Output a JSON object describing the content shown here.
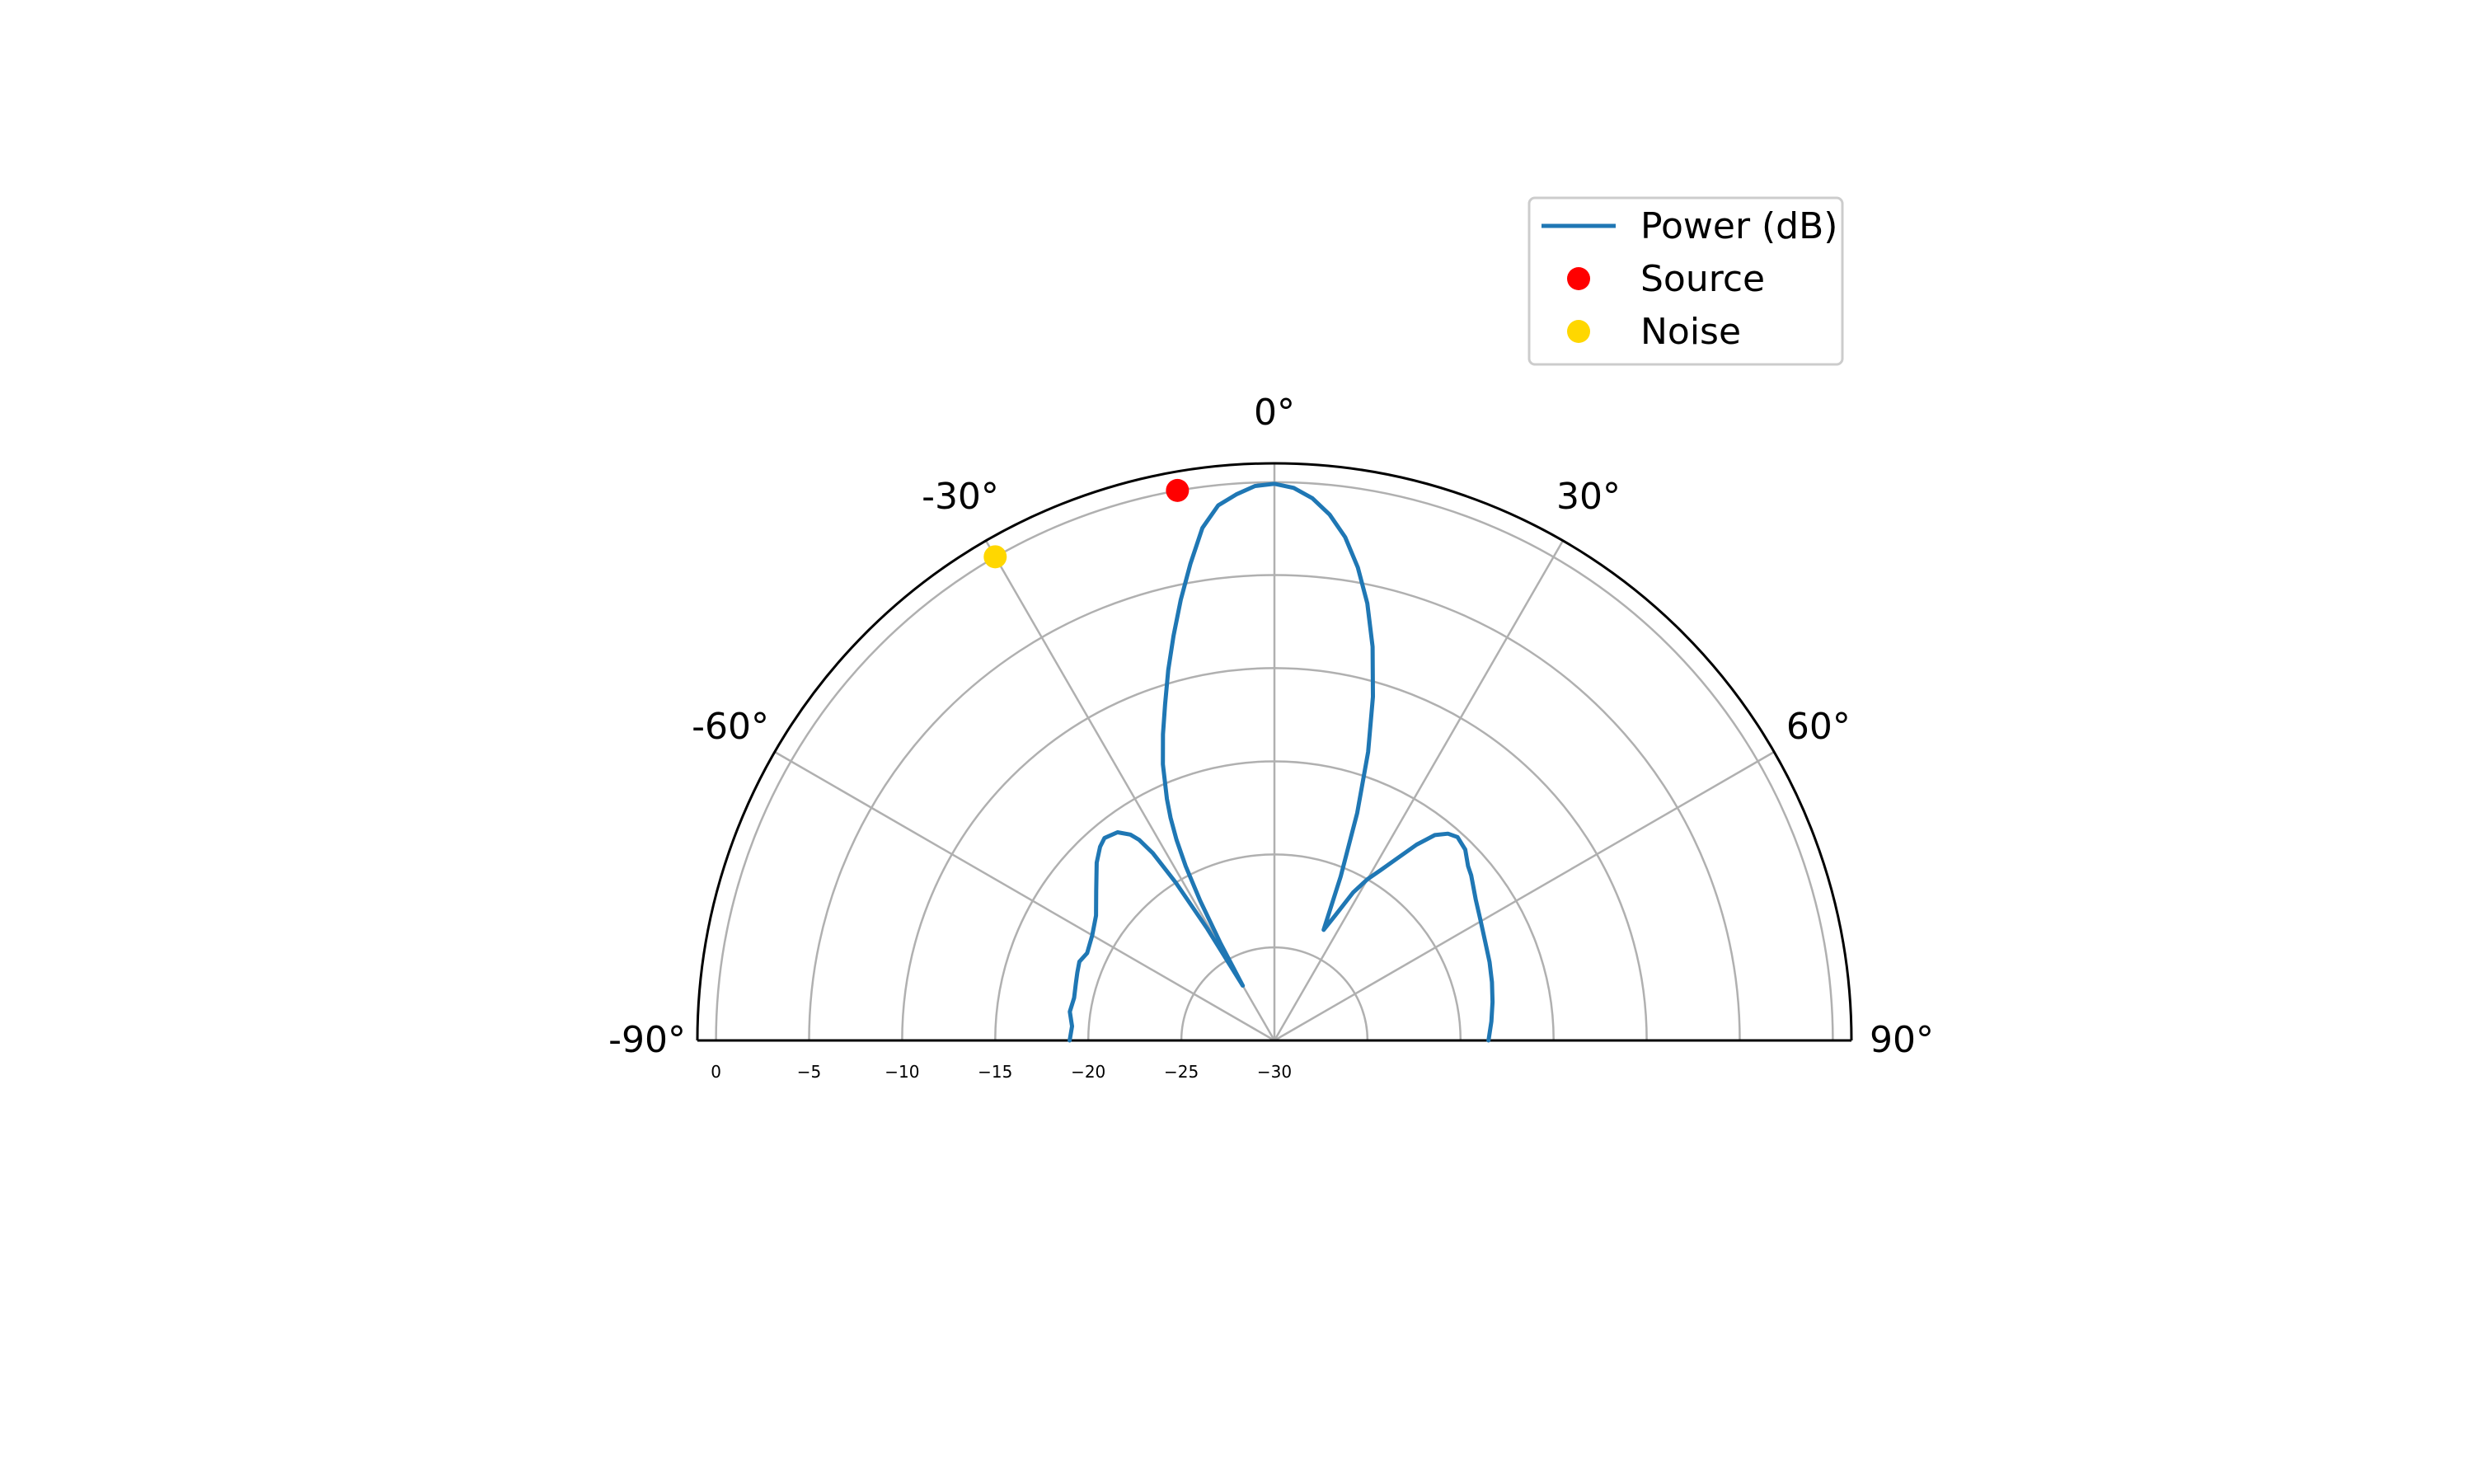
{
  "colors": {
    "power": "#1f77b4",
    "source": "#ff0000",
    "noise": "#ffd700",
    "grid": "#b0b0b0",
    "frame": "#000000",
    "legend_border": "#cccccc"
  },
  "chart_data": {
    "type": "polar",
    "subtype": "half-polar line with markers",
    "theta_unit": "degrees",
    "theta_range": [
      -90,
      90
    ],
    "theta_zero": "top",
    "theta_ticks": [
      -90,
      -60,
      -30,
      0,
      30,
      60,
      90
    ],
    "theta_tick_labels": [
      "-90°",
      "-60°",
      "-30°",
      "0°",
      "30°",
      "60°",
      "90°"
    ],
    "r_range": [
      -30,
      1
    ],
    "r_ticks": [
      0,
      -5,
      -10,
      -15,
      -20,
      -25,
      -30
    ],
    "r_tick_labels": [
      "0",
      "−5",
      "−10",
      "−15",
      "−20",
      "−25",
      "−30"
    ],
    "grid": true,
    "legend": {
      "position": "top-right",
      "entries": [
        {
          "label": "Power (dB)",
          "kind": "line",
          "color_key": "power"
        },
        {
          "label": "Source",
          "kind": "marker",
          "color_key": "source"
        },
        {
          "label": "Noise",
          "kind": "marker",
          "color_key": "noise"
        }
      ]
    },
    "series": [
      {
        "name": "Power (dB)",
        "kind": "line",
        "color_key": "power",
        "theta": [
          -90,
          -86,
          -82,
          -78,
          -74,
          -71,
          -68,
          -65,
          -60,
          -55,
          -50,
          -45,
          -42,
          -40,
          -37,
          -35,
          -34,
          -33,
          -32,
          -31,
          -30,
          -29,
          -28,
          -27,
          -26,
          -25,
          -24,
          -22,
          -20,
          -18,
          -16,
          -14,
          -12,
          -10,
          -8,
          -6,
          -4,
          -2,
          0,
          2,
          4,
          6,
          8,
          10,
          12,
          14,
          16,
          18,
          20,
          22,
          24,
          26,
          28,
          30,
          32,
          34,
          36,
          38,
          40,
          42,
          45,
          48,
          50,
          55,
          60,
          65,
          70,
          75,
          80,
          85,
          90
        ],
        "r": [
          -19.0,
          -19.1,
          -18.9,
          -19.0,
          -18.9,
          -18.8,
          -18.7,
          -18.9,
          -18.7,
          -18.3,
          -17.5,
          -16.5,
          -16.0,
          -15.8,
          -16.0,
          -16.5,
          -17.0,
          -18.0,
          -20.0,
          -23.0,
          -26.6,
          -24.0,
          -21.5,
          -19.5,
          -18.0,
          -16.8,
          -15.8,
          -14.0,
          -12.5,
          -11.0,
          -9.3,
          -7.6,
          -5.8,
          -4.0,
          -2.2,
          -1.1,
          -0.6,
          -0.2,
          -0.1,
          -0.3,
          -0.8,
          -1.6,
          -2.7,
          -4.2,
          -6.0,
          -8.2,
          -10.8,
          -13.7,
          -17.0,
          -20.5,
          -23.5,
          -22.5,
          -21.0,
          -20.0,
          -19.2,
          -18.2,
          -17.0,
          -16.0,
          -15.5,
          -15.3,
          -15.5,
          -16.0,
          -16.2,
          -16.8,
          -17.2,
          -17.5,
          -17.7,
          -17.9,
          -18.1,
          -18.3,
          -18.5
        ]
      },
      {
        "name": "Source",
        "kind": "marker",
        "color_key": "source",
        "theta": [
          -10
        ],
        "r": [
          0
        ]
      },
      {
        "name": "Noise",
        "kind": "marker",
        "color_key": "noise",
        "theta": [
          -30
        ],
        "r": [
          0
        ]
      }
    ]
  }
}
